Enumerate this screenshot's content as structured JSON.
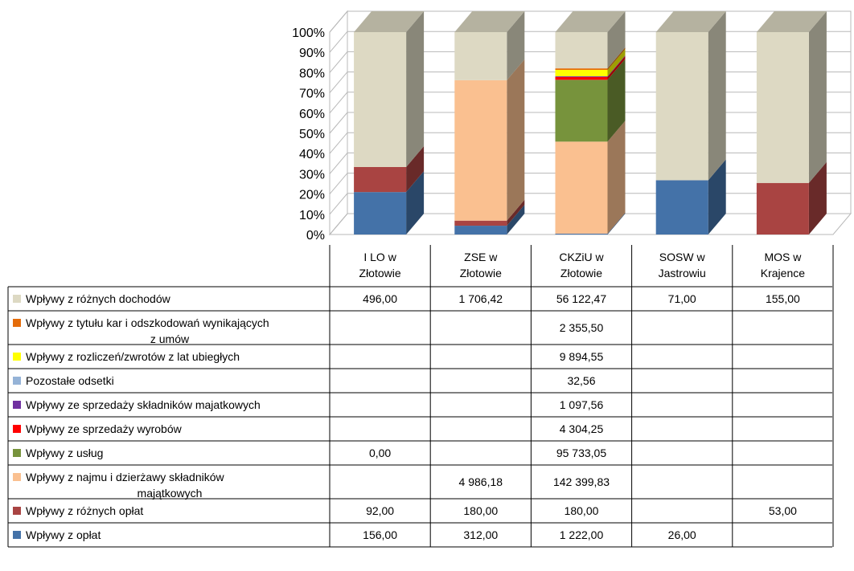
{
  "chart_data": {
    "type": "bar",
    "stacked": "percent",
    "view": "3d",
    "categories": [
      "I LO w Złotowie",
      "ZSE w Złotowie",
      "CKZiU w Złotowie",
      "SOSW w Jastrowiu",
      "MOS w Krajence"
    ],
    "category_lines": [
      [
        "I LO w",
        "Złotowie"
      ],
      [
        "ZSE w",
        "Złotowie"
      ],
      [
        "CKZiU w",
        "Złotowie"
      ],
      [
        "SOSW w",
        "Jastrowiu"
      ],
      [
        "MOS w",
        "Krajence"
      ]
    ],
    "ylim": [
      0,
      100
    ],
    "yticks": [
      "0%",
      "10%",
      "20%",
      "30%",
      "40%",
      "50%",
      "60%",
      "70%",
      "80%",
      "90%",
      "100%"
    ],
    "grid": true,
    "legend_placement": "data-table",
    "series": [
      {
        "name": "Wpływy z opłat",
        "lines": [
          "Wpływy z opłat"
        ],
        "color": "#4472A8",
        "values": [
          156.0,
          312.0,
          1222.0,
          26.0,
          null
        ],
        "labels": [
          "156,00",
          "312,00",
          "1 222,00",
          "26,00",
          ""
        ]
      },
      {
        "name": "Wpływy z różnych opłat",
        "lines": [
          "Wpływy z różnych opłat"
        ],
        "color": "#A94442",
        "values": [
          92.0,
          180.0,
          180.0,
          null,
          53.0
        ],
        "labels": [
          "92,00",
          "180,00",
          "180,00",
          "",
          "53,00"
        ]
      },
      {
        "name": "Wpływy z najmu i dzierżawy składników majątkowych",
        "lines": [
          "Wpływy z najmu i dzierżawy składników",
          "majątkowych"
        ],
        "color": "#FAC090",
        "values": [
          null,
          4986.18,
          142399.83,
          null,
          null
        ],
        "labels": [
          "",
          "4 986,18",
          "142 399,83",
          "",
          ""
        ]
      },
      {
        "name": "Wpływy z usług",
        "lines": [
          "Wpływy z usług"
        ],
        "color": "#77933C",
        "values": [
          0.0,
          null,
          95733.05,
          null,
          null
        ],
        "labels": [
          "0,00",
          "",
          "95 733,05",
          "",
          ""
        ]
      },
      {
        "name": "Wpływy ze sprzedaży wyrobów",
        "lines": [
          "Wpływy ze sprzedaży wyrobów"
        ],
        "color": "#FF0000",
        "values": [
          null,
          null,
          4304.25,
          null,
          null
        ],
        "labels": [
          "",
          "",
          "4 304,25",
          "",
          ""
        ]
      },
      {
        "name": "Wpływy ze sprzedaży składników majatkowych",
        "lines": [
          "Wpływy ze sprzedaży składników majatkowych"
        ],
        "color": "#7030A0",
        "values": [
          null,
          null,
          1097.56,
          null,
          null
        ],
        "labels": [
          "",
          "",
          "1 097,56",
          "",
          ""
        ]
      },
      {
        "name": "Pozostałe odsetki",
        "lines": [
          "Pozostałe odsetki"
        ],
        "color": "#95B3D7",
        "values": [
          null,
          null,
          32.56,
          null,
          null
        ],
        "labels": [
          "",
          "",
          "32,56",
          "",
          ""
        ]
      },
      {
        "name": "Wpływy z rozliczeń/zwrotów z lat ubiegłych",
        "lines": [
          "Wpływy z rozliczeń/zwrotów z lat ubiegłych"
        ],
        "color": "#FFFF00",
        "values": [
          null,
          null,
          9894.55,
          null,
          null
        ],
        "labels": [
          "",
          "",
          "9 894,55",
          "",
          ""
        ]
      },
      {
        "name": "Wpływy z tytułu kar i odszkodowań wynikających z umów",
        "lines": [
          "Wpływy z tytułu kar i odszkodowań wynikających",
          "z umów"
        ],
        "color": "#E46C0A",
        "values": [
          null,
          null,
          2355.5,
          null,
          null
        ],
        "labels": [
          "",
          "",
          "2 355,50",
          "",
          ""
        ]
      },
      {
        "name": "Wpływy z różnych dochodów",
        "lines": [
          "Wpływy z różnych dochodów"
        ],
        "color": "#DDD9C3",
        "values": [
          496.0,
          1706.42,
          56122.47,
          71.0,
          155.0
        ],
        "labels": [
          "496,00",
          "1 706,42",
          "56 122,47",
          "71,00",
          "155,00"
        ]
      }
    ]
  }
}
